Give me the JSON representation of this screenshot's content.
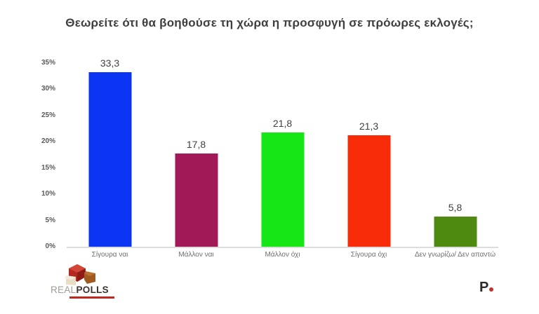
{
  "title": "Θεωρείτε ότι θα βοηθούσε τη χώρα η προσφυγή σε πρόωρες εκλογές;",
  "chart_data": {
    "type": "bar",
    "title": "Θεωρείτε ότι θα βοηθούσε τη χώρα η προσφυγή σε πρόωρες εκλογές;",
    "categories": [
      "Σίγουρα ναι",
      "Μάλλον ναι",
      "Μάλλον όχι",
      "Σίγουρα όχι",
      "Δεν γνωρίζω/ Δεν απαντώ"
    ],
    "values": [
      33.3,
      17.8,
      21.8,
      21.3,
      5.8
    ],
    "value_labels": [
      "33,3",
      "17,8",
      "21,8",
      "21,3",
      "5,8"
    ],
    "bar_colors": [
      "#0b35f2",
      "#a21958",
      "#16e516",
      "#f72b08",
      "#4e8a10"
    ],
    "xlabel": "",
    "ylabel": "",
    "ylim": [
      0,
      35
    ],
    "ytick_values": [
      0,
      5,
      10,
      15,
      20,
      25,
      30,
      35
    ],
    "ytick_labels": [
      "0%",
      "5%",
      "10%",
      "15%",
      "20%",
      "25%",
      "30%",
      "35%"
    ],
    "grid": false,
    "legend": "none"
  },
  "footer": {
    "realpolls": {
      "part1": "REAL",
      "part2": "POLLS"
    },
    "publisher": {
      "letter": "P"
    }
  }
}
